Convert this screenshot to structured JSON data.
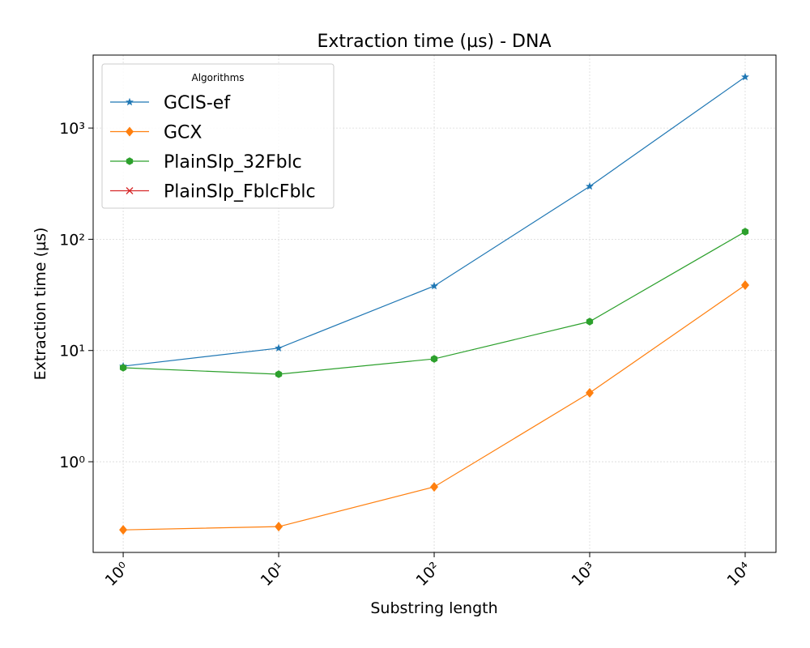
{
  "chart_data": {
    "type": "line",
    "title": "Extraction time (µs) - DNA",
    "xlabel": "Substring length",
    "ylabel": "Extraction time (µs)",
    "x": [
      1,
      10,
      100,
      1000,
      10000
    ],
    "series": [
      {
        "name": "GCIS-ef",
        "color": "#1f77b4",
        "marker": "star",
        "values": [
          7.23,
          10.5,
          38,
          299,
          2880
        ]
      },
      {
        "name": "GCX",
        "color": "#ff7f0e",
        "marker": "diamond",
        "values": [
          0.244,
          0.261,
          0.594,
          4.16,
          38.7
        ]
      },
      {
        "name": "PlainSlp_32Fblc",
        "color": "#2ca02c",
        "marker": "hexagon",
        "values": [
          7.0,
          6.12,
          8.41,
          18.2,
          117
        ]
      },
      {
        "name": "PlainSlp_FblcFblc",
        "color": "#d62728",
        "marker": "x",
        "values": [
          null,
          null,
          null,
          null,
          null
        ]
      }
    ],
    "xscale": "log",
    "yscale": "log",
    "xlim": [
      0.641,
      15780
    ],
    "ylim": [
      0.153,
      4530
    ],
    "xticks": [
      {
        "value": 1,
        "label": "10⁰"
      },
      {
        "value": 10,
        "label": "10¹"
      },
      {
        "value": 100,
        "label": "10²"
      },
      {
        "value": 1000,
        "label": "10³"
      },
      {
        "value": 10000,
        "label": "10⁴"
      }
    ],
    "yticks": [
      {
        "value": 1,
        "label": "10⁰"
      },
      {
        "value": 10,
        "label": "10¹"
      },
      {
        "value": 100,
        "label": "10²"
      },
      {
        "value": 1000,
        "label": "10³"
      }
    ],
    "grid": true,
    "legend": {
      "title": "Algorithms",
      "loc": "upper left"
    }
  }
}
